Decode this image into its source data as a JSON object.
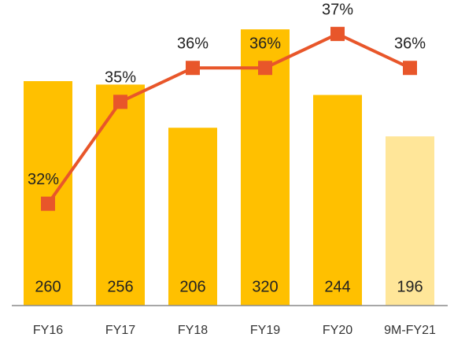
{
  "chart_data": {
    "type": "bar",
    "categories": [
      "FY16",
      "FY17",
      "FY18",
      "FY19",
      "FY20",
      "9M-FY21"
    ],
    "values": [
      260,
      256,
      206,
      320,
      244,
      196
    ],
    "colors": [
      "#FFC000",
      "#FFC000",
      "#FFC000",
      "#FFC000",
      "#FFC000",
      "#FFE699"
    ],
    "ylim": [
      0,
      354
    ],
    "line": {
      "type": "line",
      "values": [
        32,
        35,
        36,
        36,
        37,
        36
      ],
      "value_labels": [
        "32%",
        "35%",
        "36%",
        "36%",
        "37%",
        "36%"
      ],
      "color": "#E8562A",
      "axis": "y2"
    },
    "y2lim": [
      29,
      38
    ]
  }
}
